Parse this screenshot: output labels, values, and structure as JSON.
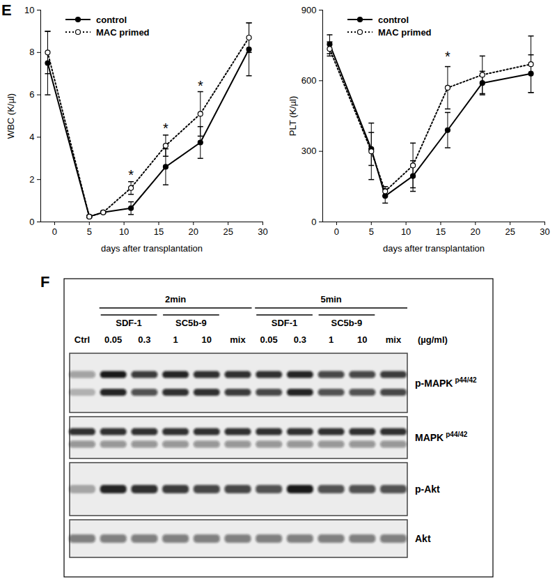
{
  "chart_data": [
    {
      "type": "line",
      "panel_label": "E",
      "x_label": "days after transplantation",
      "y_label": "WBC (K/µl)",
      "xlim": [
        -2,
        30
      ],
      "xticks": [
        0,
        5,
        10,
        15,
        20,
        25,
        30
      ],
      "ylim": [
        0,
        10
      ],
      "yticks": [
        0,
        2,
        4,
        6,
        8,
        10
      ],
      "legend": "top-left",
      "grid": false,
      "x": [
        -1,
        5,
        7,
        11,
        16,
        21,
        28
      ],
      "series": [
        {
          "name": "control",
          "color": "#000000",
          "marker": "circle",
          "line_style": "solid",
          "values": [
            7.5,
            0.25,
            0.45,
            0.65,
            2.6,
            3.75,
            8.15
          ],
          "errors": [
            1.5,
            0.05,
            0.05,
            0.3,
            0.85,
            0.75,
            1.25
          ]
        },
        {
          "name": "MAC primed",
          "color": "#000000",
          "marker": "open_circle",
          "line_style": "dotted",
          "values": [
            8.0,
            0.25,
            0.45,
            1.6,
            3.6,
            5.1,
            8.7
          ],
          "errors": [
            1.0,
            0.05,
            0.05,
            0.3,
            0.5,
            1.05,
            0.7
          ]
        }
      ],
      "annotations": [
        {
          "x": 11,
          "y": 2.2,
          "text": "*"
        },
        {
          "x": 16,
          "y": 4.4,
          "text": "*"
        },
        {
          "x": 21,
          "y": 6.4,
          "text": "*"
        }
      ]
    },
    {
      "type": "line",
      "x_label": "days after transplantation",
      "y_label": "PLT (K/µl)",
      "xlim": [
        -2,
        30
      ],
      "xticks": [
        0,
        5,
        10,
        15,
        20,
        25,
        30
      ],
      "ylim": [
        0,
        900
      ],
      "yticks": [
        0,
        300,
        600,
        900
      ],
      "legend": "top-left",
      "grid": false,
      "x": [
        -1,
        5,
        7,
        11,
        16,
        21,
        28
      ],
      "series": [
        {
          "name": "control",
          "color": "#000000",
          "marker": "circle",
          "line_style": "solid",
          "values": [
            755,
            310,
            110,
            195,
            390,
            590,
            630
          ],
          "errors": [
            40,
            70,
            30,
            65,
            75,
            50,
            80
          ]
        },
        {
          "name": "MAC primed",
          "color": "#000000",
          "marker": "open_circle",
          "line_style": "dotted",
          "values": [
            735,
            300,
            130,
            240,
            570,
            625,
            670
          ],
          "errors": [
            30,
            120,
            20,
            95,
            90,
            80,
            120
          ]
        }
      ],
      "annotations": [
        {
          "x": 16,
          "y": 700,
          "text": "*"
        }
      ]
    }
  ],
  "blot": {
    "panel_label": "F",
    "units": "(µg/ml)",
    "lanes": [
      "Ctrl",
      "0.05",
      "0.3",
      "1",
      "10",
      "mix",
      "0.05",
      "0.3",
      "1",
      "10",
      "mix"
    ],
    "time_groups": [
      {
        "label": "2min",
        "first_lane": 1,
        "last_lane": 5
      },
      {
        "label": "5min",
        "first_lane": 6,
        "last_lane": 10
      }
    ],
    "treatment_groups": [
      {
        "label": "SDF-1",
        "first_lane": 1,
        "last_lane": 2
      },
      {
        "label": "SC5b-9",
        "first_lane": 3,
        "last_lane": 4
      },
      {
        "label": "SDF-1",
        "first_lane": 6,
        "last_lane": 7
      },
      {
        "label": "SC5b-9",
        "first_lane": 8,
        "last_lane": 9
      }
    ],
    "rows": [
      {
        "label": "p-MAPK",
        "sup": "p44/42",
        "band_intensity": [
          [
            0.35,
            0.95,
            0.8,
            0.9,
            0.85,
            0.85,
            0.85,
            0.9,
            0.75,
            0.75,
            0.8
          ],
          [
            0.25,
            0.9,
            0.7,
            0.85,
            0.85,
            0.8,
            0.75,
            0.9,
            0.7,
            0.7,
            0.75
          ]
        ]
      },
      {
        "label": "MAPK",
        "sup": "p44/42",
        "band_intensity": [
          [
            0.85,
            0.85,
            0.85,
            0.85,
            0.85,
            0.85,
            0.85,
            0.85,
            0.85,
            0.85,
            0.85
          ],
          [
            0.4,
            0.4,
            0.4,
            0.4,
            0.4,
            0.4,
            0.4,
            0.4,
            0.4,
            0.4,
            0.4
          ]
        ]
      },
      {
        "label": "p-Akt",
        "band_intensity": [
          [
            0.3,
            0.9,
            0.85,
            0.8,
            0.75,
            0.75,
            0.7,
            0.95,
            0.7,
            0.7,
            0.7
          ]
        ]
      },
      {
        "label": "Akt",
        "band_intensity": [
          [
            0.5,
            0.5,
            0.5,
            0.5,
            0.5,
            0.5,
            0.5,
            0.5,
            0.5,
            0.5,
            0.5
          ]
        ]
      }
    ]
  }
}
